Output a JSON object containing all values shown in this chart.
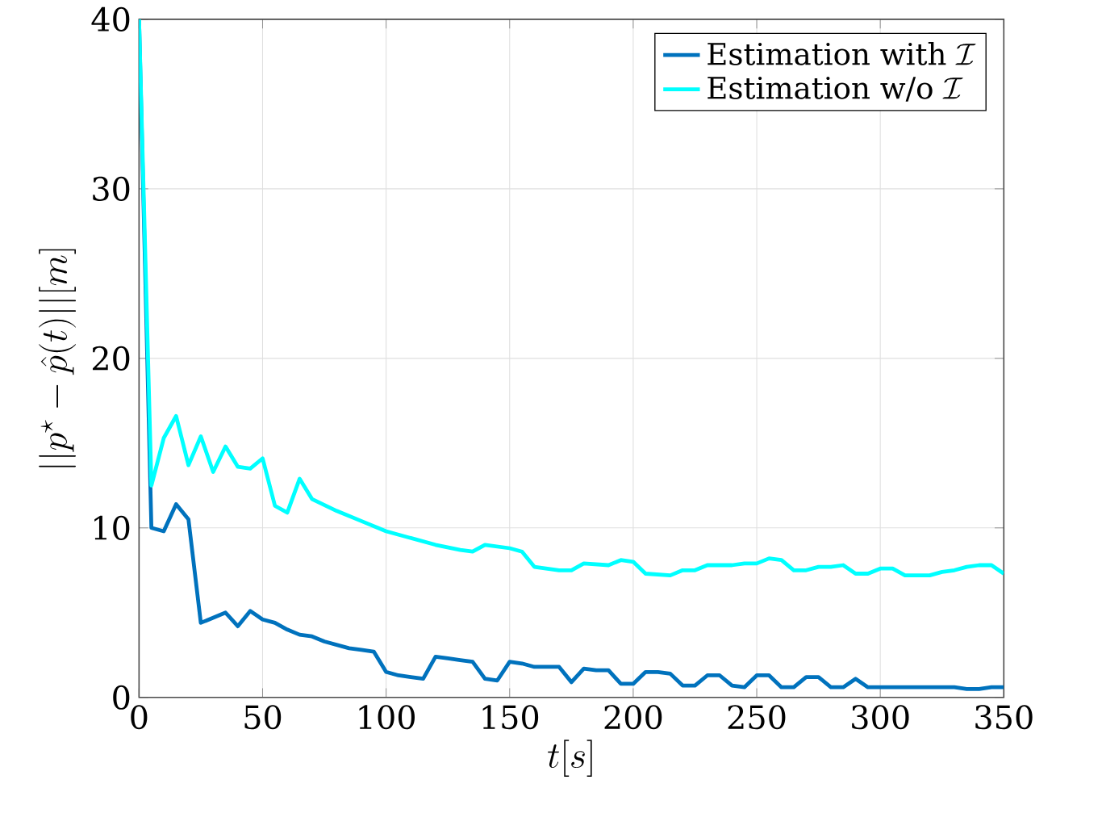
{
  "chart_data": {
    "type": "line",
    "xlabel": "t[s]",
    "ylabel": "||p^{\\star}-\\hat{p}(t)||[m]",
    "xlim": [
      0,
      350
    ],
    "ylim": [
      0,
      40
    ],
    "xticks": [
      0,
      50,
      100,
      150,
      200,
      250,
      300,
      350
    ],
    "yticks": [
      0,
      10,
      20,
      30,
      40
    ],
    "grid": true,
    "legend": "top right",
    "line_style": "solid",
    "marker": "none",
    "series": [
      {
        "name": "\\mbox{Estimation with }\\mathcal{I}",
        "color": "#0072bd",
        "x": [
          0,
          5,
          10,
          15,
          20,
          25,
          30,
          35,
          40,
          45,
          50,
          55,
          60,
          65,
          70,
          75,
          80,
          85,
          90,
          95,
          100,
          105,
          110,
          115,
          120,
          125,
          130,
          135,
          140,
          145,
          150,
          155,
          160,
          165,
          170,
          175,
          180,
          185,
          190,
          195,
          200,
          205,
          210,
          215,
          220,
          225,
          230,
          235,
          240,
          245,
          250,
          255,
          260,
          265,
          270,
          275,
          280,
          285,
          290,
          295,
          300,
          305,
          310,
          315,
          320,
          325,
          330,
          335,
          340,
          345,
          350
        ],
        "values": [
          40,
          10,
          9.8,
          11.4,
          10.5,
          4.4,
          4.7,
          5.0,
          4.2,
          5.1,
          4.6,
          4.4,
          4.0,
          3.7,
          3.6,
          3.3,
          3.1,
          2.9,
          2.8,
          2.7,
          1.5,
          1.3,
          1.2,
          1.1,
          2.4,
          2.3,
          2.2,
          2.1,
          1.1,
          1.0,
          2.1,
          2.0,
          1.8,
          1.8,
          1.8,
          0.9,
          1.7,
          1.6,
          1.6,
          0.8,
          0.8,
          1.5,
          1.5,
          1.4,
          0.7,
          0.7,
          1.3,
          1.3,
          0.7,
          0.6,
          1.3,
          1.3,
          0.6,
          0.6,
          1.2,
          1.2,
          0.6,
          0.6,
          1.1,
          0.6,
          0.6,
          0.6,
          0.6,
          0.6,
          0.6,
          0.6,
          0.6,
          0.5,
          0.5,
          0.6,
          0.6
        ]
      },
      {
        "name": "\\mbox{Estimation w/o }\\mathcal{I}",
        "color": "#00ffff",
        "x": [
          0,
          5,
          10,
          15,
          20,
          25,
          30,
          35,
          40,
          45,
          50,
          55,
          60,
          65,
          70,
          80,
          90,
          100,
          110,
          120,
          130,
          135,
          140,
          150,
          155,
          160,
          170,
          175,
          180,
          190,
          195,
          200,
          205,
          215,
          220,
          225,
          230,
          240,
          245,
          250,
          255,
          260,
          265,
          270,
          275,
          280,
          285,
          290,
          295,
          300,
          305,
          310,
          320,
          325,
          330,
          335,
          340,
          345,
          350
        ],
        "values": [
          40,
          12.5,
          15.3,
          16.6,
          13.7,
          15.4,
          13.3,
          14.8,
          13.6,
          13.5,
          14.1,
          11.3,
          10.9,
          12.9,
          11.7,
          11.0,
          10.4,
          9.8,
          9.4,
          9.0,
          8.7,
          8.6,
          9.0,
          8.8,
          8.6,
          7.7,
          7.5,
          7.5,
          7.9,
          7.8,
          8.1,
          8.0,
          7.3,
          7.2,
          7.5,
          7.5,
          7.8,
          7.8,
          7.9,
          7.9,
          8.2,
          8.1,
          7.5,
          7.5,
          7.7,
          7.7,
          7.8,
          7.3,
          7.3,
          7.6,
          7.6,
          7.2,
          7.2,
          7.4,
          7.5,
          7.7,
          7.8,
          7.8,
          7.3
        ]
      }
    ]
  }
}
